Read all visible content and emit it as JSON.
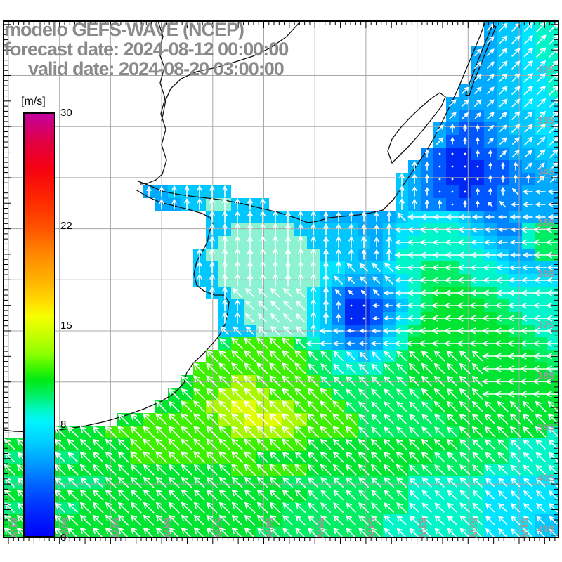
{
  "title": {
    "line1": "modelo GEFS-WAVE (NCEP)",
    "line2": "forecast date: 2024-08-12 00:00:00",
    "line3": "valid date: 2024-08-20 03:00:00"
  },
  "colorbar": {
    "unit_label": "[m/s]",
    "min": 0,
    "max": 30,
    "tick_labels": [
      "30",
      "22",
      "15",
      "8",
      "0"
    ],
    "tick_values": [
      30,
      22,
      15,
      8,
      0
    ],
    "stops": [
      [
        0,
        "#c4009e"
      ],
      [
        7,
        "#e2003e"
      ],
      [
        13,
        "#f60012"
      ],
      [
        20,
        "#ff2600"
      ],
      [
        27,
        "#ff5200"
      ],
      [
        33,
        "#ff8600"
      ],
      [
        40,
        "#ffb600"
      ],
      [
        45,
        "#ffe000"
      ],
      [
        48,
        "#f6ff00"
      ],
      [
        53,
        "#c0ff00"
      ],
      [
        57,
        "#8aff00"
      ],
      [
        60,
        "#42f600"
      ],
      [
        63,
        "#00ea12"
      ],
      [
        67,
        "#00f06e"
      ],
      [
        70,
        "#00f8c0"
      ],
      [
        73,
        "#00f4ff"
      ],
      [
        78,
        "#00ccff"
      ],
      [
        83,
        "#0098ff"
      ],
      [
        88,
        "#0062ff"
      ],
      [
        93,
        "#0032ff"
      ],
      [
        100,
        "#0000f8"
      ]
    ]
  },
  "map": {
    "lat_labels": [
      "32S",
      "33S",
      "34S",
      "35S",
      "36S",
      "37S",
      "38S",
      "39S",
      "40S",
      "41S"
    ],
    "lat_values": [
      32,
      33,
      34,
      35,
      36,
      37,
      38,
      39,
      40,
      41
    ],
    "lon_labels": [
      "61W",
      "60W",
      "59W",
      "58W",
      "57W",
      "56W",
      "55W",
      "54W",
      "53W",
      "52W",
      "51W"
    ],
    "lon_values": [
      61,
      60,
      59,
      58,
      57,
      56,
      55,
      54,
      53,
      52,
      51
    ],
    "grid_color": "#a8a8a8",
    "border_color": "#000000",
    "coast_color": "#111111",
    "label_color": "#9a9a9a",
    "arrow_color": "#ffffff",
    "land_color": "#ffffff",
    "palette": {
      "a": "#0028f5",
      "b": "#0056ff",
      "c": "#0084ff",
      "d": "#00aaff",
      "e": "#00c8ff",
      "f": "#00e4ff",
      "g": "#8cf2d2",
      "h": "#00f6c8",
      "i": "#00ee80",
      "j": "#00ee64",
      "k": "#00e432",
      "l": "#3cf000",
      "m": "#aaf800",
      "n": "#e0fc00"
    },
    "speed": {
      "a": 2.5,
      "b": 4,
      "c": 5.5,
      "d": 7,
      "e": 8.5,
      "f": 9.5,
      "g": 9.5,
      "h": 10.5,
      "i": 10.5,
      "j": 11,
      "k": 12,
      "l": 13,
      "m": 14.5,
      "n": 15.5
    },
    "cells": [
      "......................................deefhh",
      "......................................deefhh",
      ".....................................ddeefhh",
      ".....................................ddeeffh",
      ".....................................ddeeffh",
      "....................................dddeeffh",
      "...................................ddddeefff",
      "...................................dccddeeff",
      "..................................dcbbcdeeff",
      "..................................dbbbcddeef",
      ".................................cbaabbcddee",
      "................................dcbaaabbcdde",
      "...............................edcbaaabbccdd",
      "...........ddeeeee.............edcbbabbccddd",
      "............ddeeggeee..........edccbbbbccddd",
      "................eeeeeeeeeddddddeffffedccdddd",
      "................eegggggeeeeeddeffhhhfedcchjj",
      "................egggggggeeeeedefhhhhhfeddhjj",
      "...............egggggggggeeeddehhhhhhhfeddjj",
      "...............eeggggggggffeeefhhjjjhhhfeeee",
      "...............eeggggggggfedddefhjjjjhhhffff",
      "................eeggggggfecbbcdfhjkkkjjhhhhh",
      ".................eegggggfecaabcehjkkkkjjhhhh",
      ".................eegggggfecaabdfhkkkkkkjjhhh",
      ".................eeeggggfedbbcehjkkkkkkkjjhh",
      ".................jllllljhedccdfhkkkkkkkkkjjh",
      "................lllllllljjhfefhjkkkkkkkkkkjj",
      "...............llllllllljjhhhhjjkkkkkkkkkkkj",
      "..............klllmmllllljjjjjjjkkkkkkkkkkkk",
      ".............kkllmmmmllllljjjjjjjkkkkkkkkkkk",
      "............kkllmmnnmmmlllljjjjjjjkkkkkkkkkk",
      ".........kkllllllmmnnnmmlllljjjjjjjkkkkkkkkk",
      "...kkkkkllllllllllmmmmmllllljjjjjjjjkkkkkkkh",
      "kkkkkkkkkkllllllllllllllkkkkkkkkkkkkjjjjhhhh",
      "iiiiiikkkkllllllllllkkkkkkkkkkkkkkjjjjjjhhhh",
      "kkkkkkkkkkkkkkkkkkllllllkkkkkkkkjjjjjjhhhhhh",
      "iiiiiiiikkkkkkkkkkkkkkjjjjjjjjjjhhhhhhffffff",
      "kkkkkkkkkkkkkkkkkkkkkkkkjjjjjjjjhhhhhhffffff",
      "iiiiiikkkkkkkkkkkkkkkkjjjjjjjjjjhhhhhhffffff",
      "kkkkkkkkkkkkkkkkkkkkkkjjjjjjjjhhhhhhhhffffee",
      "kkkkkkkkkkkkkkkkkkkkjjjjjjjjjjhhhhhhhhffffee"
    ],
    "dirs": [
      "......................................222222",
      "......................................222222",
      ".....................................2222222",
      ".....................................2222222",
      ".....................................2222222",
      "....................................22222222",
      "...................................222222222",
      "...................................222222222",
      "..................................2111222222",
      "..................................2111222222",
      ".................................10001122222",
      "................................110000111222",
      "...............................1110000111122",
      "...........1111111.............1110001118777",
      "............111111111..........1111011887777",
      "................1111111111111118777777777777",
      "................1111111111111117777777777777",
      "................1111111111111117777777777777",
      "...............11111111111111117777777777777",
      "...............11111111111188887777777777777",
      "...............11111111111888887777777777777",
      "................1188888811888877777777777777",
      ".................118888811100777777777777777",
      ".................118888811100777777777777777",
      ".................888888817777777777777777777",
      ".................888888877777777777777777777",
      "................8888888888888888888888777777",
      "...............88888888888888888888888777777",
      "..............888888888888888888888888777777",
      ".............8888888888888888888888888777777",
      "............88888888888888888888888888888888",
      ".........88888888888888888888888888888888888",
      "...88888888888888888888888888888888888888888",
      "88888888888888888888888888888888888888888888",
      "88888888888888888888888888888888888888888888",
      "88888888888888888888888888888888888888888888",
      "88888888888888888888888888888888888888888888",
      "88888888888888888888888888888888888888888888",
      "88888888888888888888888888888888888888888888",
      "88888888888888888888888888888888888888888888",
      "88888888888888888888888888888888888888888888"
    ],
    "coast_paths": [
      "M197,258 L215,265 L230,272 L250,276 L270,279 L295,282 L320,285 L345,290 L370,296 L395,302 L420,310 L438,317 L452,315 L468,310 L488,308 L510,306 L528,303 L545,299 L560,284 L575,262 L590,240 L605,218 L618,196 L630,172 L642,148 L653,124 L663,100 L673,76 L683,52 L691,30",
      "M193,270 L210,280 L228,288 L248,293 L268,298 L288,304 L299,310 L303,318 L298,330 L295,345 L288,358 L280,372 L276,390 L280,406 L290,414 L305,420 L319,420 L326,430 L324,446 L320,462 L312,478 L300,492 L288,505 L276,516 L266,530 L262,545 L248,560 L228,572 L205,582 L180,591 L150,600 L118,607 L85,612 L50,615 L20,614 L5,612",
      "M225,30 L232,52 L226,74 L234,96 L228,118 L235,140 L229,162 L236,184 L230,206 L237,228 L231,248 L222,256 L210,261 L200,262",
      "M428,30 L408,52 L385,68 L360,80 L335,88 L308,96 L280,102 L258,112 L243,126 L236,142 L233,158 L230,172",
      "M701,36 L690,62 L679,90 L669,117 L663,135 L668,136 L675,115 L686,88 L697,60 L706,38 Z",
      "M558,232 L552,215 L558,198 L570,182 L585,166 L600,152 L614,140 L626,132 L634,138 L628,152 L614,170 L598,190 L582,208 L568,222 Z"
    ]
  }
}
